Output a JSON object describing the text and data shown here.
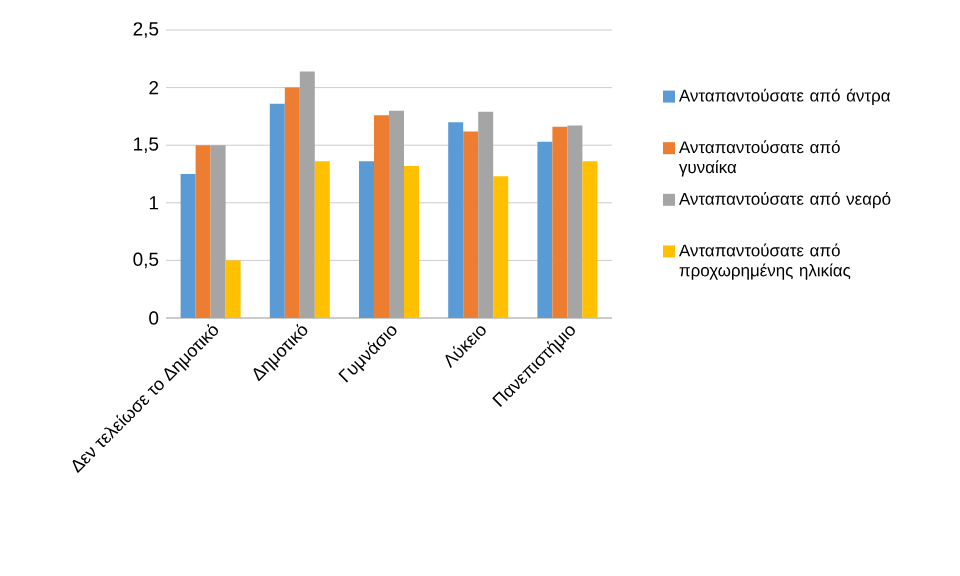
{
  "chart_data": {
    "type": "bar",
    "categories": [
      "Δεν τελείωσε το Δημοτικό",
      "Δημοτικό",
      "Γυμνάσιο",
      "Λύκειο",
      "Πανεπιστήμιο"
    ],
    "series": [
      {
        "name": "Ανταπαντούσατε από άντρα",
        "color": "#5b9bd5",
        "values": [
          1.25,
          1.86,
          1.36,
          1.7,
          1.53
        ]
      },
      {
        "name": "Ανταπαντούσατε από γυναίκα",
        "color": "#ed7d31",
        "values": [
          1.5,
          2.0,
          1.76,
          1.62,
          1.66
        ]
      },
      {
        "name": "Ανταπαντούσατε από νεαρό",
        "color": "#a5a5a5",
        "values": [
          1.5,
          2.14,
          1.8,
          1.79,
          1.67
        ]
      },
      {
        "name": "Ανταπαντούσατε από προχωρημένης ηλικίας",
        "color": "#ffc000",
        "values": [
          0.5,
          1.36,
          1.32,
          1.23,
          1.36
        ]
      }
    ],
    "ylim": [
      0,
      2.5
    ],
    "yticks": [
      0,
      {
        "value": 0.5,
        "label": "0,5"
      },
      1,
      {
        "value": 1.5,
        "label": "1,5"
      },
      2,
      {
        "value": 2.5,
        "label": "2,5"
      }
    ],
    "grid": "y",
    "legend": "right"
  }
}
